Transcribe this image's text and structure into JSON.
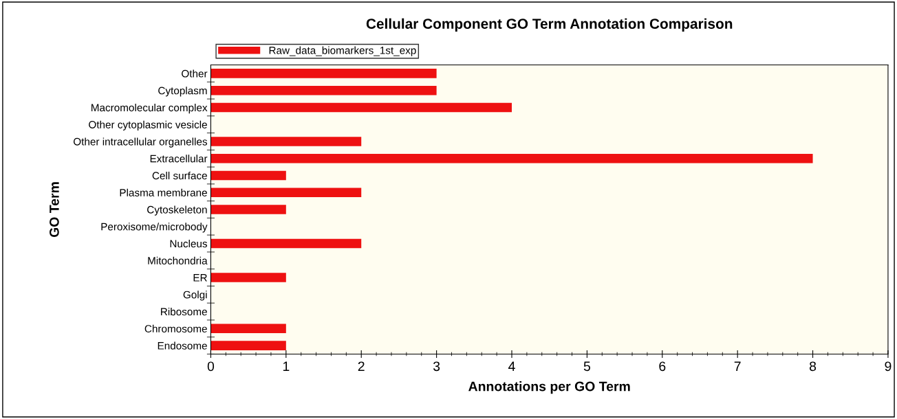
{
  "chart_data": {
    "type": "bar",
    "orientation": "horizontal",
    "title": "Cellular Component GO Term Annotation Comparison",
    "xlabel": "Annotations per GO Term",
    "ylabel": "GO Term",
    "categories": [
      "Other",
      "Cytoplasm",
      "Macromolecular complex",
      "Other cytoplasmic vesicle",
      "Other intracellular organelles",
      "Extracellular",
      "Cell surface",
      "Plasma membrane",
      "Cytoskeleton",
      "Peroxisome/microbody",
      "Nucleus",
      "Mitochondria",
      "ER",
      "Golgi",
      "Ribosome",
      "Chromosome",
      "Endosome"
    ],
    "series": [
      {
        "name": "Raw_data_biomarkers_1st_exp",
        "color": "#ee1111",
        "values": [
          3,
          3,
          4,
          0,
          2,
          8,
          1,
          2,
          1,
          0,
          2,
          0,
          1,
          0,
          0,
          1,
          1
        ]
      }
    ],
    "xlim": [
      0,
      9
    ],
    "xticks": [
      0,
      1,
      2,
      3,
      4,
      5,
      6,
      7,
      8,
      9
    ],
    "grid": false,
    "legend": "top left"
  }
}
